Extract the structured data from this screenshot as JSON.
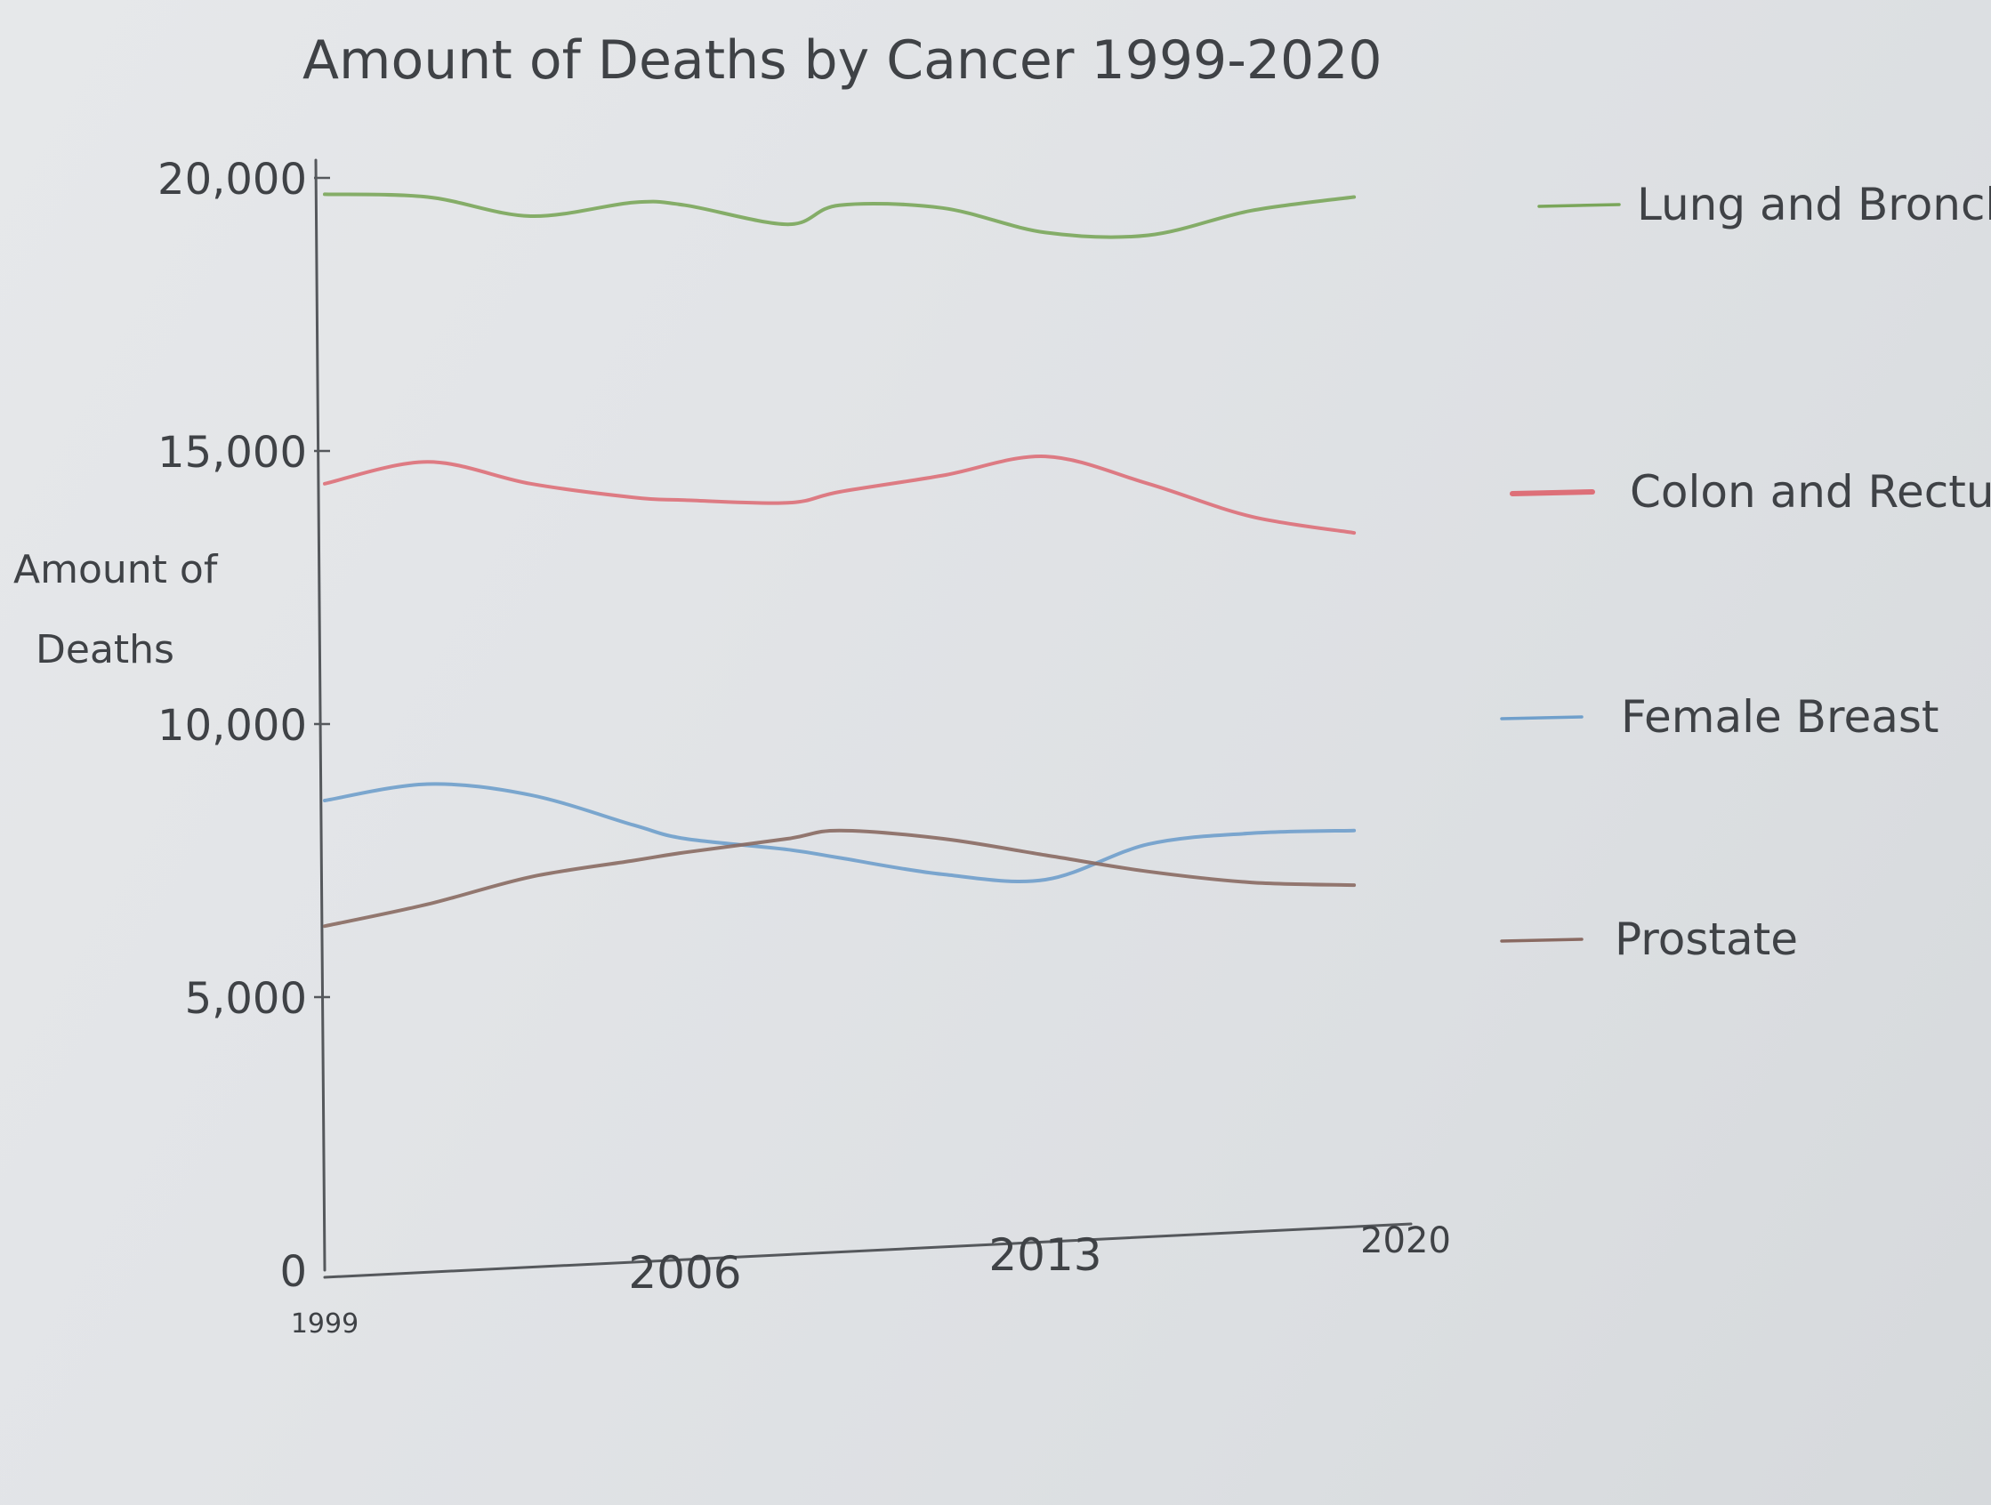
{
  "chart_data": {
    "type": "line",
    "title": "Amount of Deaths by Cancer 1999-2020",
    "ylabel": "Amount of Deaths",
    "xlabel": "",
    "x": [
      1999,
      2001,
      2003,
      2005,
      2006,
      2008,
      2009,
      2011,
      2013,
      2015,
      2017,
      2019
    ],
    "xticks": [
      "1999",
      "2006",
      "2013",
      "2020"
    ],
    "yticks": [
      "0",
      "5,000",
      "10,000",
      "15,000",
      "20,000"
    ],
    "xlim": [
      1999,
      2020
    ],
    "ylim": [
      0,
      20000
    ],
    "grid": false,
    "legend_position": "right",
    "series": [
      {
        "name": "Lung and Bronchus",
        "color": "#7aa65a",
        "values": [
          19700,
          19650,
          19300,
          19550,
          19500,
          19150,
          19500,
          19450,
          19000,
          18950,
          19400,
          19650
        ]
      },
      {
        "name": "Colon and Rectum",
        "color": "#dd6f78",
        "values": [
          14400,
          14800,
          14400,
          14150,
          14100,
          14050,
          14250,
          14550,
          14900,
          14400,
          13800,
          13500
        ]
      },
      {
        "name": "Female Breast",
        "color": "#6f9fcb",
        "values": [
          8600,
          8900,
          8700,
          8150,
          7900,
          7700,
          7550,
          7250,
          7150,
          7800,
          8000,
          8050
        ]
      },
      {
        "name": "Prostate",
        "color": "#8a6a62",
        "values": [
          6300,
          6700,
          7200,
          7500,
          7650,
          7900,
          8050,
          7900,
          7600,
          7300,
          7100,
          7050
        ]
      }
    ]
  }
}
